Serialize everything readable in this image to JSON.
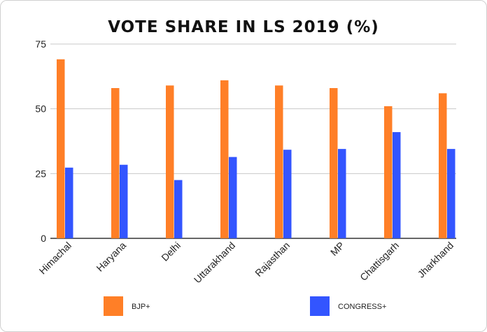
{
  "chart_data": {
    "type": "bar",
    "title": "VOTE SHARE IN LS 2019 (%)",
    "categories": [
      "Himachal",
      "Haryana",
      "Delhi",
      "Uttarakhand",
      "Rajasthan",
      "MP",
      "Chattisgarh",
      "Jharkhand"
    ],
    "series": [
      {
        "name": "BJP+",
        "color": "#ff7f27",
        "values": [
          69.1,
          58.0,
          59.0,
          61.0,
          59.0,
          58.0,
          51.0,
          56.0
        ]
      },
      {
        "name": "CONGRESS+",
        "color": "#3355ff",
        "values": [
          27.3,
          28.4,
          22.5,
          31.4,
          34.2,
          34.5,
          41.0,
          34.5
        ]
      }
    ],
    "yticks": [
      0,
      25,
      50,
      75
    ],
    "ylim": [
      0,
      75
    ],
    "xlabel": "",
    "ylabel": "",
    "grid": true,
    "legend_position": "bottom"
  }
}
